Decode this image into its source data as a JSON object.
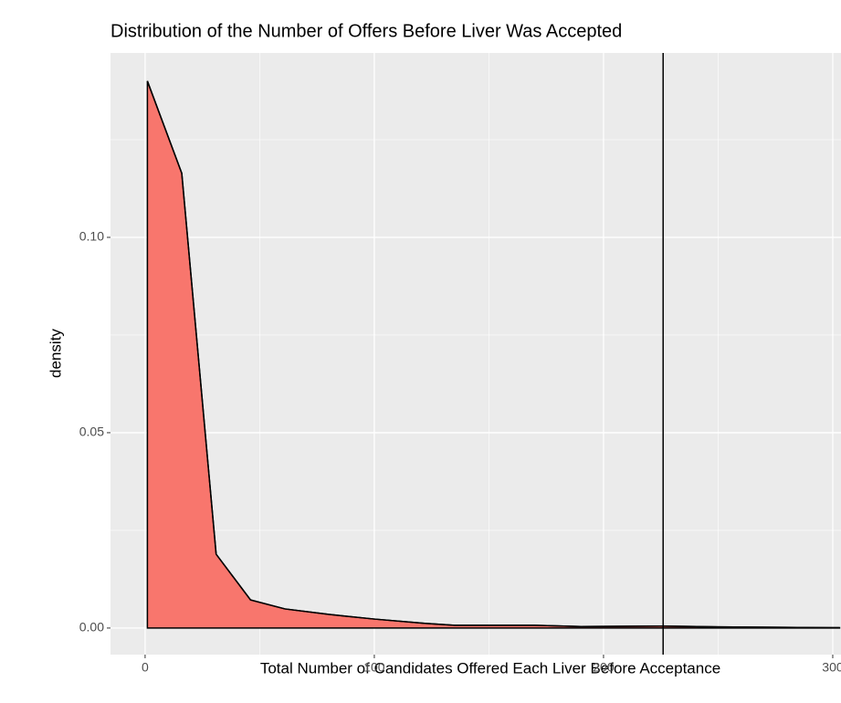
{
  "chart_data": {
    "type": "area",
    "title": "Distribution of the Number of Offers Before Liver Was Accepted",
    "x_label": "Total Number of Candidates Offered Each Liver Before Acceptance",
    "y_label": "density",
    "x": [
      1,
      16,
      31,
      46,
      61,
      80,
      100,
      122,
      135,
      170,
      190,
      225,
      250,
      300,
      303
    ],
    "series": [
      {
        "color": "#F8766D",
        "values": [
          0.14,
          0.1164,
          0.0189,
          0.0072,
          0.0049,
          0.0035,
          0.0023,
          0.0012,
          0.0007,
          0.0007,
          0.0004,
          0.0005,
          0.0003,
          0.0001,
          0.0001
        ]
      }
    ],
    "vline": 226,
    "xlim": [
      -15.1,
      303.6
    ],
    "ylim": [
      -0.0068,
      0.1472
    ],
    "xticks": [
      0,
      100,
      200,
      300
    ],
    "yticks": [
      {
        "value": 0,
        "label": "0.00"
      },
      {
        "value": 0.05,
        "label": "0.05"
      },
      {
        "value": 0.1,
        "label": "0.10"
      }
    ],
    "minor_xticks": [
      50,
      150,
      250
    ],
    "minor_yticks": [
      0.025,
      0.075,
      0.125
    ],
    "grid": true
  }
}
